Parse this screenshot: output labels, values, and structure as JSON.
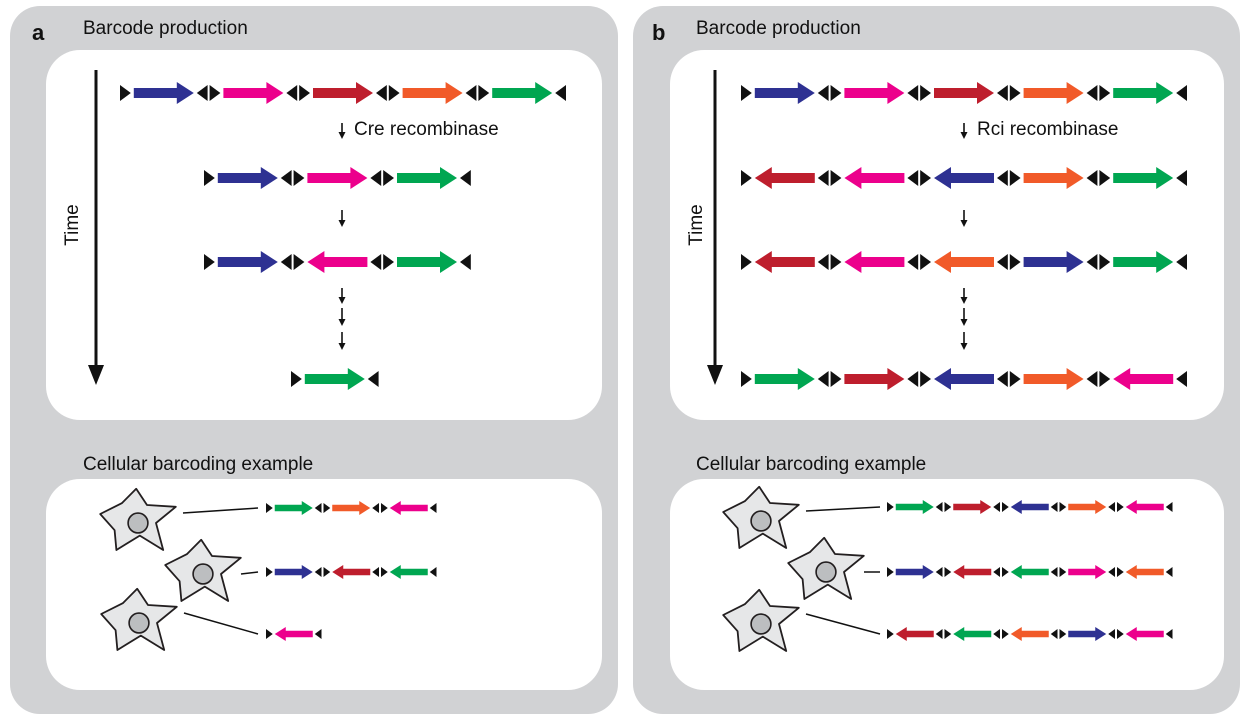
{
  "colors": {
    "blue": "#2e3192",
    "magenta": "#ec008c",
    "red": "#be1e2d",
    "orange": "#f15a29",
    "green": "#00a651",
    "panel_bg": "#d1d2d4",
    "cell_fill": "#e6e7e8",
    "nucleus_fill": "#bcbec0"
  },
  "panel_a": {
    "letter": "a",
    "production_title": "Barcode production",
    "time_label": "Time",
    "recombinase_label": "Cre recombinase",
    "example_title": "Cellular barcoding example",
    "rows": [
      [
        {
          "c": "blue",
          "d": "right"
        },
        {
          "c": "magenta",
          "d": "right"
        },
        {
          "c": "red",
          "d": "right"
        },
        {
          "c": "orange",
          "d": "right"
        },
        {
          "c": "green",
          "d": "right"
        }
      ],
      [
        {
          "c": "blue",
          "d": "right"
        },
        {
          "c": "magenta",
          "d": "right"
        },
        {
          "c": "green",
          "d": "right"
        }
      ],
      [
        {
          "c": "blue",
          "d": "right"
        },
        {
          "c": "magenta",
          "d": "left"
        },
        {
          "c": "green",
          "d": "right"
        }
      ],
      [
        {
          "c": "green",
          "d": "right"
        }
      ]
    ],
    "example_rows": [
      [
        {
          "c": "green",
          "d": "right"
        },
        {
          "c": "orange",
          "d": "right"
        },
        {
          "c": "magenta",
          "d": "left"
        }
      ],
      [
        {
          "c": "blue",
          "d": "right"
        },
        {
          "c": "red",
          "d": "left"
        },
        {
          "c": "green",
          "d": "left"
        }
      ],
      [
        {
          "c": "magenta",
          "d": "left"
        }
      ]
    ]
  },
  "panel_b": {
    "letter": "b",
    "production_title": "Barcode production",
    "time_label": "Time",
    "recombinase_label": "Rci recombinase",
    "example_title": "Cellular barcoding example",
    "rows": [
      [
        {
          "c": "blue",
          "d": "right"
        },
        {
          "c": "magenta",
          "d": "right"
        },
        {
          "c": "red",
          "d": "right"
        },
        {
          "c": "orange",
          "d": "right"
        },
        {
          "c": "green",
          "d": "right"
        }
      ],
      [
        {
          "c": "red",
          "d": "left"
        },
        {
          "c": "magenta",
          "d": "left"
        },
        {
          "c": "blue",
          "d": "left"
        },
        {
          "c": "orange",
          "d": "right"
        },
        {
          "c": "green",
          "d": "right"
        }
      ],
      [
        {
          "c": "red",
          "d": "left"
        },
        {
          "c": "magenta",
          "d": "left"
        },
        {
          "c": "orange",
          "d": "left"
        },
        {
          "c": "blue",
          "d": "right"
        },
        {
          "c": "green",
          "d": "right"
        }
      ],
      [
        {
          "c": "green",
          "d": "right"
        },
        {
          "c": "red",
          "d": "right"
        },
        {
          "c": "blue",
          "d": "left"
        },
        {
          "c": "orange",
          "d": "right"
        },
        {
          "c": "magenta",
          "d": "left"
        }
      ]
    ],
    "example_rows": [
      [
        {
          "c": "green",
          "d": "right"
        },
        {
          "c": "red",
          "d": "right"
        },
        {
          "c": "blue",
          "d": "left"
        },
        {
          "c": "orange",
          "d": "right"
        },
        {
          "c": "magenta",
          "d": "left"
        }
      ],
      [
        {
          "c": "blue",
          "d": "right"
        },
        {
          "c": "red",
          "d": "left"
        },
        {
          "c": "green",
          "d": "left"
        },
        {
          "c": "magenta",
          "d": "right"
        },
        {
          "c": "orange",
          "d": "left"
        }
      ],
      [
        {
          "c": "red",
          "d": "left"
        },
        {
          "c": "green",
          "d": "left"
        },
        {
          "c": "orange",
          "d": "left"
        },
        {
          "c": "blue",
          "d": "right"
        },
        {
          "c": "magenta",
          "d": "left"
        }
      ]
    ]
  }
}
